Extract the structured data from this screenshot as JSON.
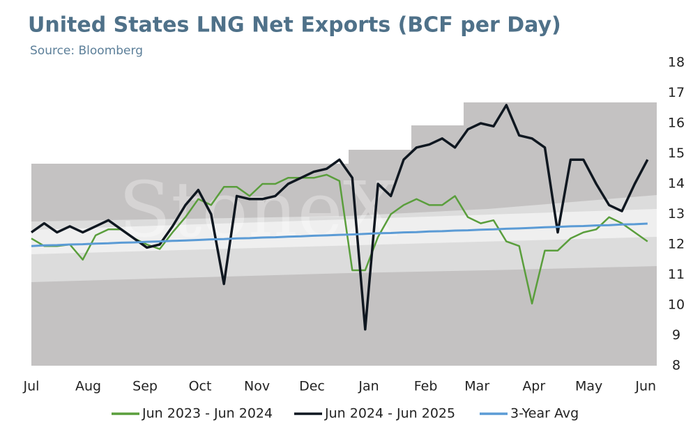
{
  "chart_data": {
    "type": "line",
    "title": "United States LNG Net Exports (BCF per Day)",
    "subtitle": "Source: Bloomberg",
    "watermark": "StoneX",
    "x": [
      0,
      7,
      14,
      21,
      28,
      35,
      42,
      49,
      56,
      63,
      70,
      77,
      84,
      91,
      98,
      105,
      112,
      119,
      126,
      133,
      140,
      147,
      154,
      161,
      168,
      175,
      182,
      189,
      196,
      203,
      210,
      217,
      224,
      231,
      238,
      245,
      252,
      259,
      266,
      273,
      280,
      287,
      294,
      301,
      308,
      315,
      322,
      329,
      336
    ],
    "xlim": [
      0,
      341
    ],
    "xticks": [
      {
        "value": 0,
        "label": "Jul"
      },
      {
        "value": 31,
        "label": "Aug"
      },
      {
        "value": 62,
        "label": "Sep"
      },
      {
        "value": 92,
        "label": "Oct"
      },
      {
        "value": 123,
        "label": "Nov"
      },
      {
        "value": 153,
        "label": "Dec"
      },
      {
        "value": 184,
        "label": "Jan"
      },
      {
        "value": 215,
        "label": "Feb"
      },
      {
        "value": 243,
        "label": "Mar"
      },
      {
        "value": 274,
        "label": "Apr"
      },
      {
        "value": 304,
        "label": "May"
      },
      {
        "value": 335,
        "label": "Jun"
      }
    ],
    "ylim": [
      8,
      18
    ],
    "yticks": [
      8,
      9,
      10,
      11,
      12,
      13,
      14,
      15,
      16,
      17,
      18
    ],
    "y_axis_side": "right",
    "legend": "bottom",
    "series": [
      {
        "name": "Jun 2023 - Jun 2024",
        "color": "#5a9e3c",
        "width": 2.5,
        "values": [
          12.2,
          11.95,
          11.95,
          12.0,
          11.5,
          12.3,
          12.5,
          12.5,
          12.2,
          12.0,
          11.85,
          12.4,
          12.9,
          13.5,
          13.3,
          13.9,
          13.9,
          13.6,
          14.0,
          14.0,
          14.2,
          14.2,
          14.2,
          14.3,
          14.1,
          11.15,
          11.15,
          12.25,
          13.0,
          13.3,
          13.5,
          13.3,
          13.3,
          13.6,
          12.9,
          12.7,
          12.8,
          12.1,
          11.95,
          10.05,
          11.8,
          11.8,
          12.2,
          12.4,
          12.5,
          12.9,
          12.7,
          12.4,
          12.1
        ]
      },
      {
        "name": "Jun 2024 - Jun 2025",
        "color": "#0f1720",
        "width": 3.5,
        "values": [
          12.4,
          12.7,
          12.4,
          12.6,
          12.4,
          12.6,
          12.8,
          12.5,
          12.2,
          11.9,
          12.0,
          12.6,
          13.3,
          13.8,
          13.0,
          10.7,
          13.6,
          13.5,
          13.5,
          13.6,
          14.0,
          14.2,
          14.4,
          14.5,
          14.8,
          14.2,
          9.2,
          14.0,
          13.6,
          14.8,
          15.2,
          15.3,
          15.5,
          15.2,
          15.8,
          16.0,
          15.9,
          16.6,
          15.6,
          15.5,
          15.2,
          12.4,
          14.8,
          14.8,
          14.0,
          13.3,
          13.1,
          14.0,
          14.8
        ]
      },
      {
        "name": "3-Year Avg",
        "color": "#5b9bd5",
        "width": 3,
        "values": [
          11.95,
          11.97,
          11.98,
          12.0,
          12.01,
          12.03,
          12.04,
          12.06,
          12.07,
          12.09,
          12.1,
          12.12,
          12.13,
          12.15,
          12.17,
          12.18,
          12.2,
          12.21,
          12.23,
          12.24,
          12.26,
          12.27,
          12.29,
          12.3,
          12.32,
          12.33,
          12.35,
          12.37,
          12.38,
          12.4,
          12.41,
          12.43,
          12.44,
          12.46,
          12.47,
          12.49,
          12.5,
          12.52,
          12.53,
          12.55,
          12.57,
          12.58,
          12.6,
          12.61,
          12.63,
          12.64,
          12.66,
          12.67,
          12.69
        ]
      }
    ]
  }
}
